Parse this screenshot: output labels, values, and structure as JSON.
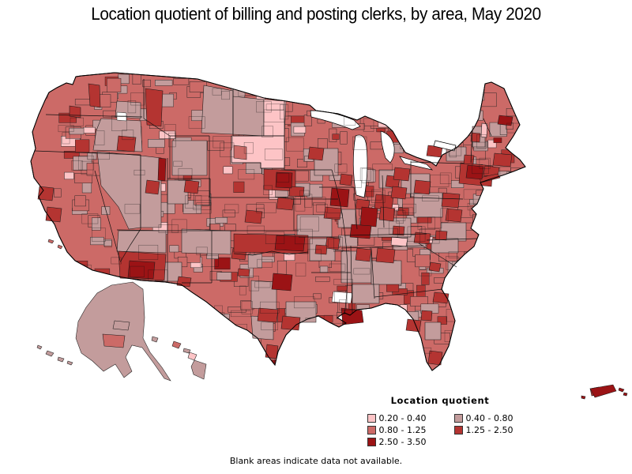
{
  "title": "Location quotient of billing and posting clerks, by area, May 2020",
  "footnote": "Blank areas indicate data not available.",
  "legend": {
    "title": "Location quotient",
    "items": [
      {
        "range": "0.20 - 0.40",
        "color": "#FDC4C6"
      },
      {
        "range": "0.40 - 0.80",
        "color": "#C39C9C"
      },
      {
        "range": "0.80 - 1.25",
        "color": "#CC6A67"
      },
      {
        "range": "1.25 - 2.50",
        "color": "#B43431"
      },
      {
        "range": "2.50 - 3.50",
        "color": "#9B1315"
      }
    ]
  },
  "map": {
    "water_color": "#FFFFFF",
    "boundary_color": "#1a1a1a",
    "outline_color": "#000000",
    "base_category": "0.80 - 1.25",
    "no_data_note": "Blank areas indicate data not available.",
    "no_data_regions": [
      "washington-blank",
      "louisiana-blank"
    ],
    "texture": {
      "seed": 42,
      "cells": 520,
      "boundary_cells": 190,
      "weights": {
        "0.80 - 1.25": 0.5,
        "0.40 - 0.80": 0.34,
        "1.25 - 2.50": 0.11,
        "2.50 - 3.50": 0.02,
        "0.20 - 0.40": 0.03
      }
    },
    "category_regions": {
      "0.40 - 0.80": [
        "nevada",
        "west-utah",
        "east-oregon",
        "se-washington-patch",
        "east-montana",
        "west-north-dakota",
        "wyoming-patch",
        "west-colorado",
        "north-arizona",
        "nm-east-block",
        "nm-south-patch",
        "central-texas-patch",
        "east-texas-patch",
        "south-texas-patch",
        "mississippi-belt",
        "alabama-belt",
        "ms-al-south-belt",
        "tn-ky-belt",
        "wv-appalachia",
        "missouri-south",
        "arkansas-patch",
        "wisconsin-west",
        "iowa-patch",
        "illinois-central",
        "michigan-lower-patch",
        "ohio-pa-patch",
        "va-coastal",
        "nc-coastal",
        "florida-central-patch",
        "nh-vt-patch",
        "upstate-ny-patch",
        "alaska-main",
        "fairbanks-area",
        "kauai",
        "molokai",
        "big-island",
        "aleutian-1",
        "aleutian-2",
        "aleutian-3",
        "aleutian-4"
      ],
      "0.20 - 0.40": [
        "north-dakota-east",
        "south-dakota",
        "nh-pink-sliver",
        "nc-pink-sliver",
        "ky-pink-sliver",
        "wv-pink-sliver",
        "maui"
      ],
      "0.80 - 1.25": [
        "rapid-city-patch",
        "anchorage-area",
        "oahu",
        "channel-island-1",
        "channel-island-2"
      ],
      "1.25 - 2.50": [
        "seattle-metro",
        "portland-metro",
        "spokane-metro",
        "boise-metro",
        "sacramento-metro",
        "fresno-metro",
        "grand-junction-metro",
        "denver-metro",
        "phoenix-tucson-block",
        "el-paso-metro",
        "midland-metro",
        "abilene-metro",
        "oklahoma-band",
        "wichita-metro",
        "omaha-cluster",
        "minneapolis-metro",
        "des-moines-metro",
        "kansas-city-metro",
        "st-louis-metro",
        "milwaukee-metro",
        "detroit-metro",
        "sw-michigan-metro",
        "indianapolis-metro",
        "cincinnati-metro",
        "memphis-metro",
        "little-rock-metro",
        "houston-metro",
        "san-antonio-metro",
        "corpus-metro",
        "atlanta-metro",
        "birmingham-metro",
        "charleston-metro",
        "charlotte-metro",
        "raleigh-metro",
        "knoxville-metro",
        "richmond-metro",
        "dc-baltimore-metro",
        "philly-nj-cluster",
        "boston-metro",
        "hartford-metro",
        "pittsburgh-metro",
        "cleveland-metro",
        "columbus-metro",
        "buffalo-metro",
        "albany-metro",
        "vermont-burlington",
        "jacksonville-metro",
        "orlando-metro",
        "tampa-metro",
        "miami-metro",
        "long-island",
        "puerto-rico-west"
      ],
      "2.50 - 3.50": [
        "slc-strip",
        "tucson-inner",
        "okc-tulsa-inner",
        "omaha-inner",
        "chicago-metro",
        "louisville-inner",
        "nashville-inner",
        "dallas-inner",
        "new-orleans-metro",
        "nyc-inner",
        "portland-maine-metro",
        "puerto-rico-main",
        "pr-speck-1",
        "pr-speck-2",
        "pr-speck-3"
      ]
    }
  }
}
